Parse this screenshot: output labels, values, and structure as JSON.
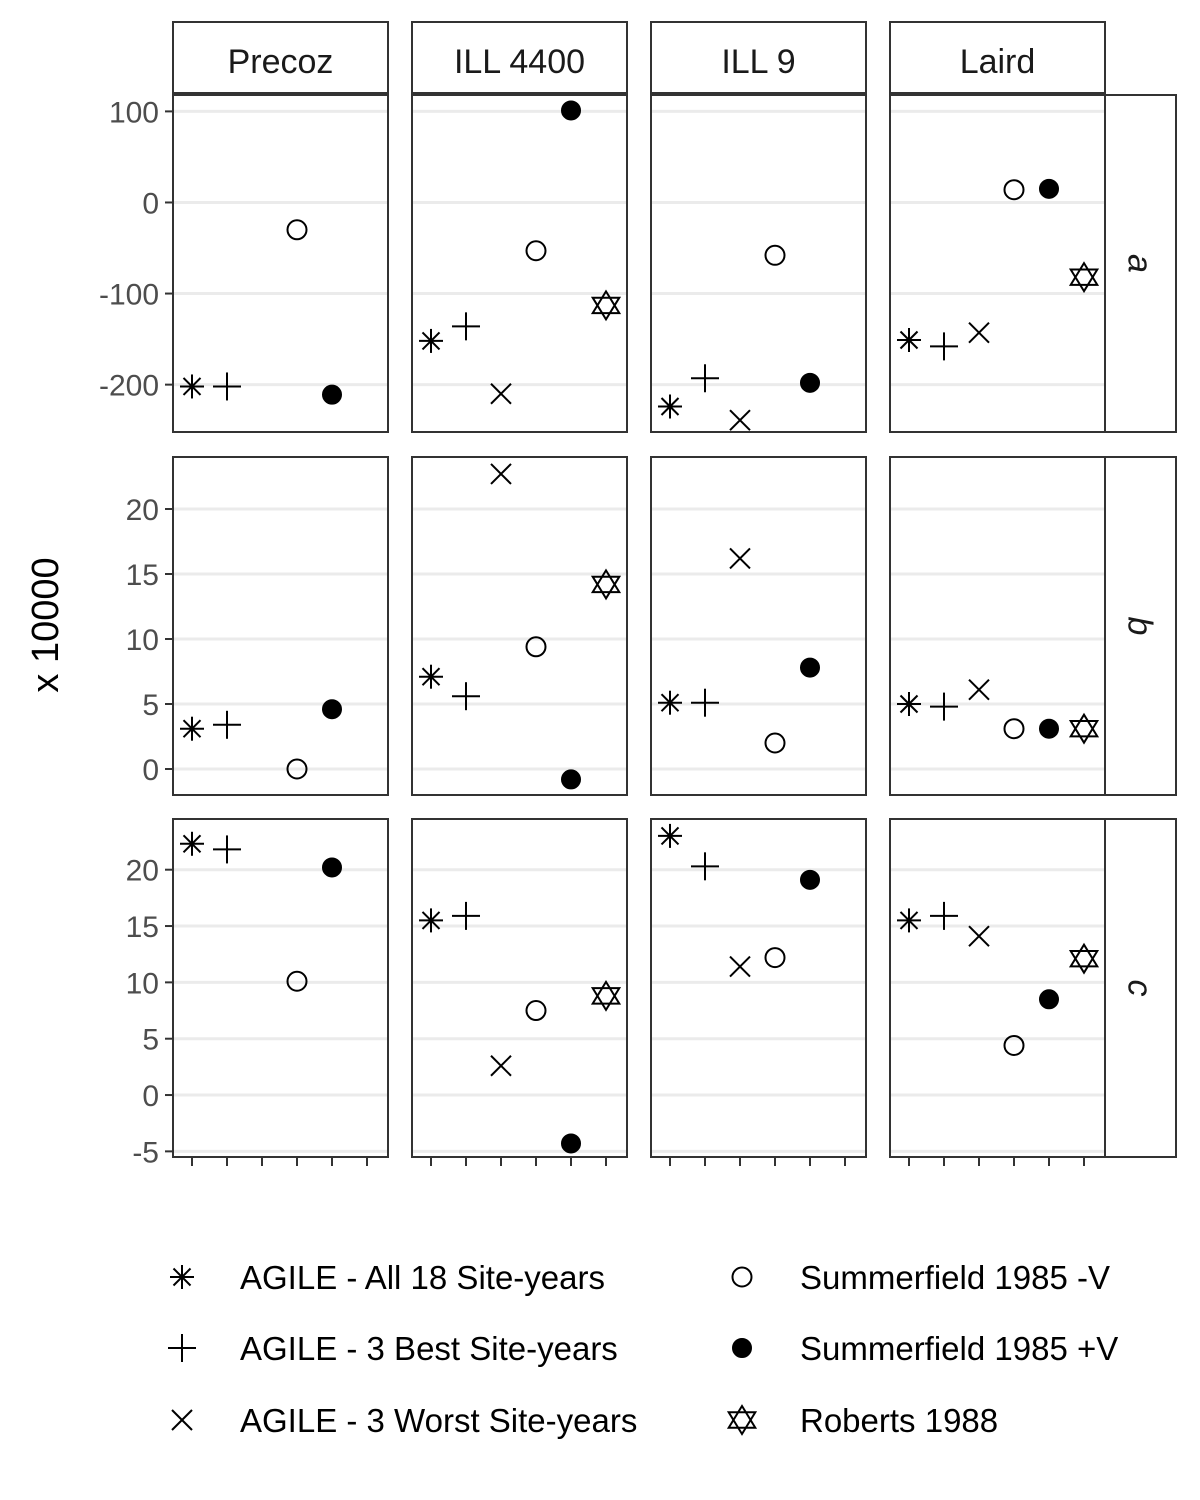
{
  "chart_data": {
    "type": "scatter",
    "ylabel": "x 10000",
    "columns": [
      "Precoz",
      "ILL 4400",
      "ILL 9",
      "Laird"
    ],
    "rows": [
      "a",
      "b",
      "c"
    ],
    "shapes": {
      "AGILE - All 18 Site-years": "asterisk",
      "AGILE - 3 Best Site-years": "plus",
      "AGILE - 3 Worst Site-years": "cross",
      "Summerfield 1985 -V": "open-circle",
      "Summerfield 1985 +V": "filled-circle",
      "Roberts 1988": "star-of-david"
    },
    "series": [
      "AGILE - All 18 Site-years",
      "AGILE - 3 Best Site-years",
      "AGILE - 3 Worst Site-years",
      "Summerfield 1985 -V",
      "Summerfield 1985 +V",
      "Roberts 1988"
    ],
    "legend_position": "bottom",
    "grid": "major horizontal",
    "panels": {
      "a": {
        "ylim": [
          -252,
          118
        ],
        "yticks": [
          100,
          0,
          -100,
          -200
        ],
        "values": {
          "Precoz": [
            -202,
            -202,
            null,
            -30,
            -211,
            null
          ],
          "ILL 4400": [
            -152,
            -136,
            -210,
            -53,
            101,
            -113
          ],
          "ILL 9": [
            -224,
            -193,
            -239,
            -58,
            -198,
            null
          ],
          "Laird": [
            -151,
            -158,
            -143,
            14,
            15,
            -82
          ]
        }
      },
      "b": {
        "ylim": [
          -2,
          24
        ],
        "yticks": [
          20,
          15,
          10,
          5,
          0
        ],
        "values": {
          "Precoz": [
            3.1,
            3.4,
            null,
            0,
            4.6,
            null
          ],
          "ILL 4400": [
            7.1,
            5.6,
            22.7,
            9.4,
            -0.8,
            14.2
          ],
          "ILL 9": [
            5.1,
            5.1,
            16.2,
            2.0,
            7.8,
            null
          ],
          "Laird": [
            5.0,
            4.8,
            6.1,
            3.1,
            3.1,
            3.1
          ]
        }
      },
      "c": {
        "ylim": [
          -5.5,
          24.5
        ],
        "yticks": [
          20,
          15,
          10,
          5,
          0,
          -5
        ],
        "values": {
          "Precoz": [
            22.3,
            21.8,
            null,
            10.1,
            20.2,
            null
          ],
          "ILL 4400": [
            15.5,
            15.9,
            2.6,
            7.5,
            -4.3,
            8.8
          ],
          "ILL 9": [
            23.0,
            20.3,
            11.4,
            12.2,
            19.1,
            null
          ],
          "Laird": [
            15.5,
            15.9,
            14.1,
            4.4,
            8.5,
            12.1
          ]
        }
      }
    }
  }
}
